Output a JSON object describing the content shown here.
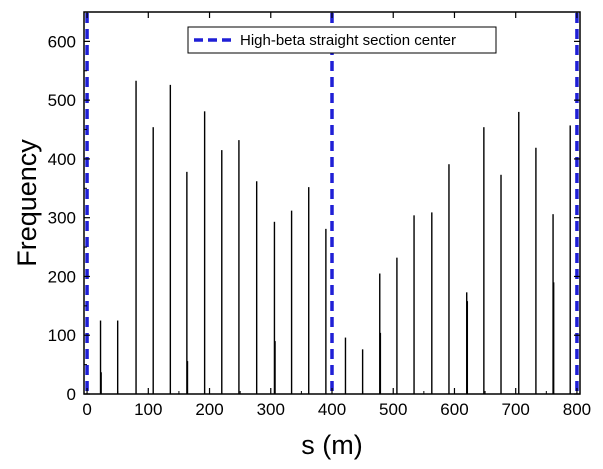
{
  "chart_data": {
    "type": "bar",
    "xlabel": "s (m)",
    "ylabel": "Frequency",
    "xlim": [
      -5,
      805
    ],
    "ylim": [
      0,
      650
    ],
    "x_ticks": [
      0,
      100,
      200,
      300,
      400,
      500,
      600,
      700,
      800
    ],
    "y_ticks": [
      0,
      100,
      200,
      300,
      400,
      500,
      600
    ],
    "grid": false,
    "bar_color": "#000000",
    "series": [
      {
        "x": [
          22,
          50,
          80,
          108,
          136,
          163,
          192,
          220,
          248,
          277,
          306,
          334,
          362,
          390,
          422,
          450,
          478,
          506,
          534,
          563,
          591,
          620,
          648,
          676,
          705,
          733,
          761,
          789
        ],
        "values": [
          125,
          125,
          533,
          454,
          526,
          378,
          481,
          415,
          432,
          362,
          293,
          312,
          352,
          281,
          96,
          76,
          205,
          232,
          304,
          309,
          391,
          173,
          454,
          373,
          480,
          419,
          306,
          457
        ]
      },
      {
        "x": [
          23,
          164,
          307,
          479,
          621,
          762
        ],
        "values": [
          37,
          56,
          90,
          104,
          158,
          190
        ]
      }
    ],
    "reference_lines": {
      "name": "High-beta straight section center",
      "x": [
        0,
        400,
        800
      ],
      "color": "#1f1fd6"
    },
    "legend": {
      "position": "top-center"
    }
  }
}
